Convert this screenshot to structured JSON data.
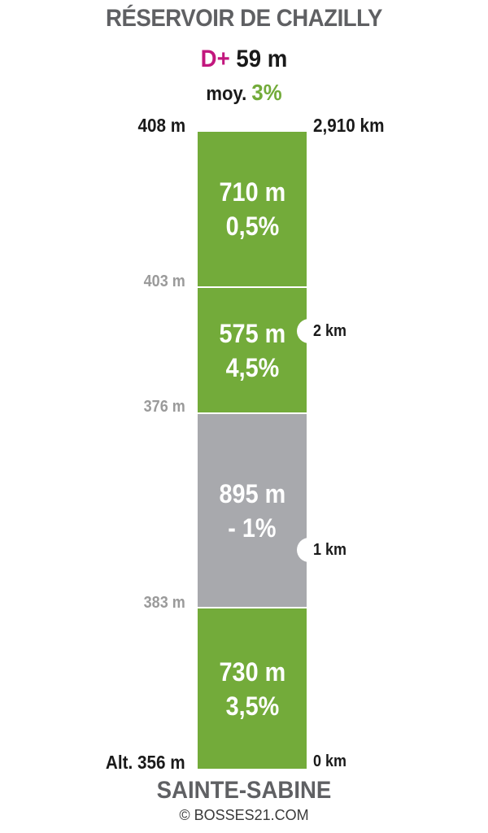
{
  "header": {
    "title": "RÉSERVOIR DE CHAZILLY",
    "dplus_label": "D+",
    "dplus_value": "59 m",
    "avg_label": "moy.",
    "avg_value": "3%"
  },
  "labels": {
    "top_altitude": "408 m",
    "top_distance": "2,910 km",
    "alt_1": "403 m",
    "alt_2": "376 m",
    "alt_3": "383 m",
    "base_altitude": "Alt. 356 m",
    "base_distance": "0 km",
    "km_2": "2 km",
    "km_1": "1 km"
  },
  "footer": {
    "start_name": "SAINTE-SABINE",
    "copyright": "© BOSSES21.COM"
  },
  "colors": {
    "climb": "#73ab3a",
    "descent": "#a8a9ad",
    "dplus": "#c2177e",
    "title": "#5f6063"
  },
  "chart_data": {
    "type": "bar",
    "title": "RÉSERVOIR DE CHAZILLY",
    "segments": [
      {
        "length": "710 m",
        "length_m": 710,
        "grade": "0,5%",
        "grade_value": 0.5,
        "color": "green"
      },
      {
        "length": "575 m",
        "length_m": 575,
        "grade": "4,5%",
        "grade_value": 4.5,
        "color": "green"
      },
      {
        "length": "895 m",
        "length_m": 895,
        "grade": "- 1%",
        "grade_value": -1,
        "color": "grey"
      },
      {
        "length": "730 m",
        "length_m": 730,
        "grade": "3,5%",
        "grade_value": 3.5,
        "color": "green"
      }
    ],
    "altitudes_m": [
      408,
      403,
      376,
      383,
      356
    ],
    "total_distance_km": 2.91,
    "elevation_gain_m": 59,
    "average_grade_pct": 3
  }
}
